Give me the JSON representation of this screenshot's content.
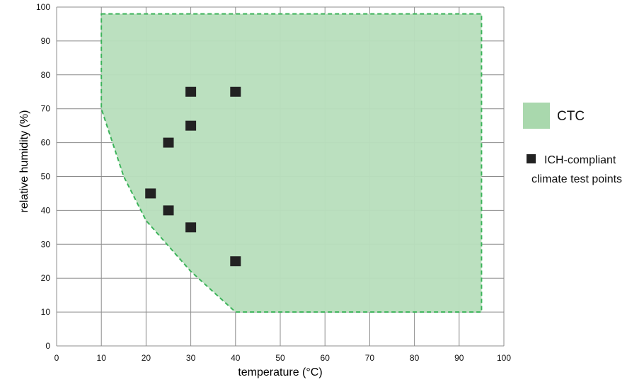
{
  "chart_data": {
    "type": "scatter",
    "title": "",
    "xlabel": "temperature (°C)",
    "ylabel": "relative humidity (%)",
    "xlim": [
      0,
      100
    ],
    "ylim": [
      0,
      100
    ],
    "xticks": [
      0,
      10,
      20,
      30,
      40,
      50,
      60,
      70,
      80,
      90,
      100
    ],
    "yticks": [
      0,
      10,
      20,
      30,
      40,
      50,
      60,
      70,
      80,
      90,
      100
    ],
    "grid": true,
    "legend_placement": "right",
    "region": {
      "name": "CTC",
      "fill_color": "#b9dfbd",
      "border_color": "#3cb35a",
      "polygon": [
        {
          "x": 10,
          "y": 98
        },
        {
          "x": 95,
          "y": 98
        },
        {
          "x": 95,
          "y": 10
        },
        {
          "x": 40,
          "y": 10
        },
        {
          "x": 30,
          "y": 22
        },
        {
          "x": 20,
          "y": 37
        },
        {
          "x": 15,
          "y": 50
        },
        {
          "x": 10,
          "y": 70
        }
      ]
    },
    "series": [
      {
        "name": "ICH-compliant climate test points",
        "name_lines": [
          "ICH-compliant",
          "climate test points"
        ],
        "color": "#222222",
        "marker": "square",
        "points": [
          {
            "x": 30,
            "y": 75
          },
          {
            "x": 40,
            "y": 75
          },
          {
            "x": 30,
            "y": 65
          },
          {
            "x": 25,
            "y": 60
          },
          {
            "x": 21,
            "y": 45
          },
          {
            "x": 25,
            "y": 40
          },
          {
            "x": 30,
            "y": 35
          },
          {
            "x": 40,
            "y": 25
          }
        ]
      }
    ]
  }
}
